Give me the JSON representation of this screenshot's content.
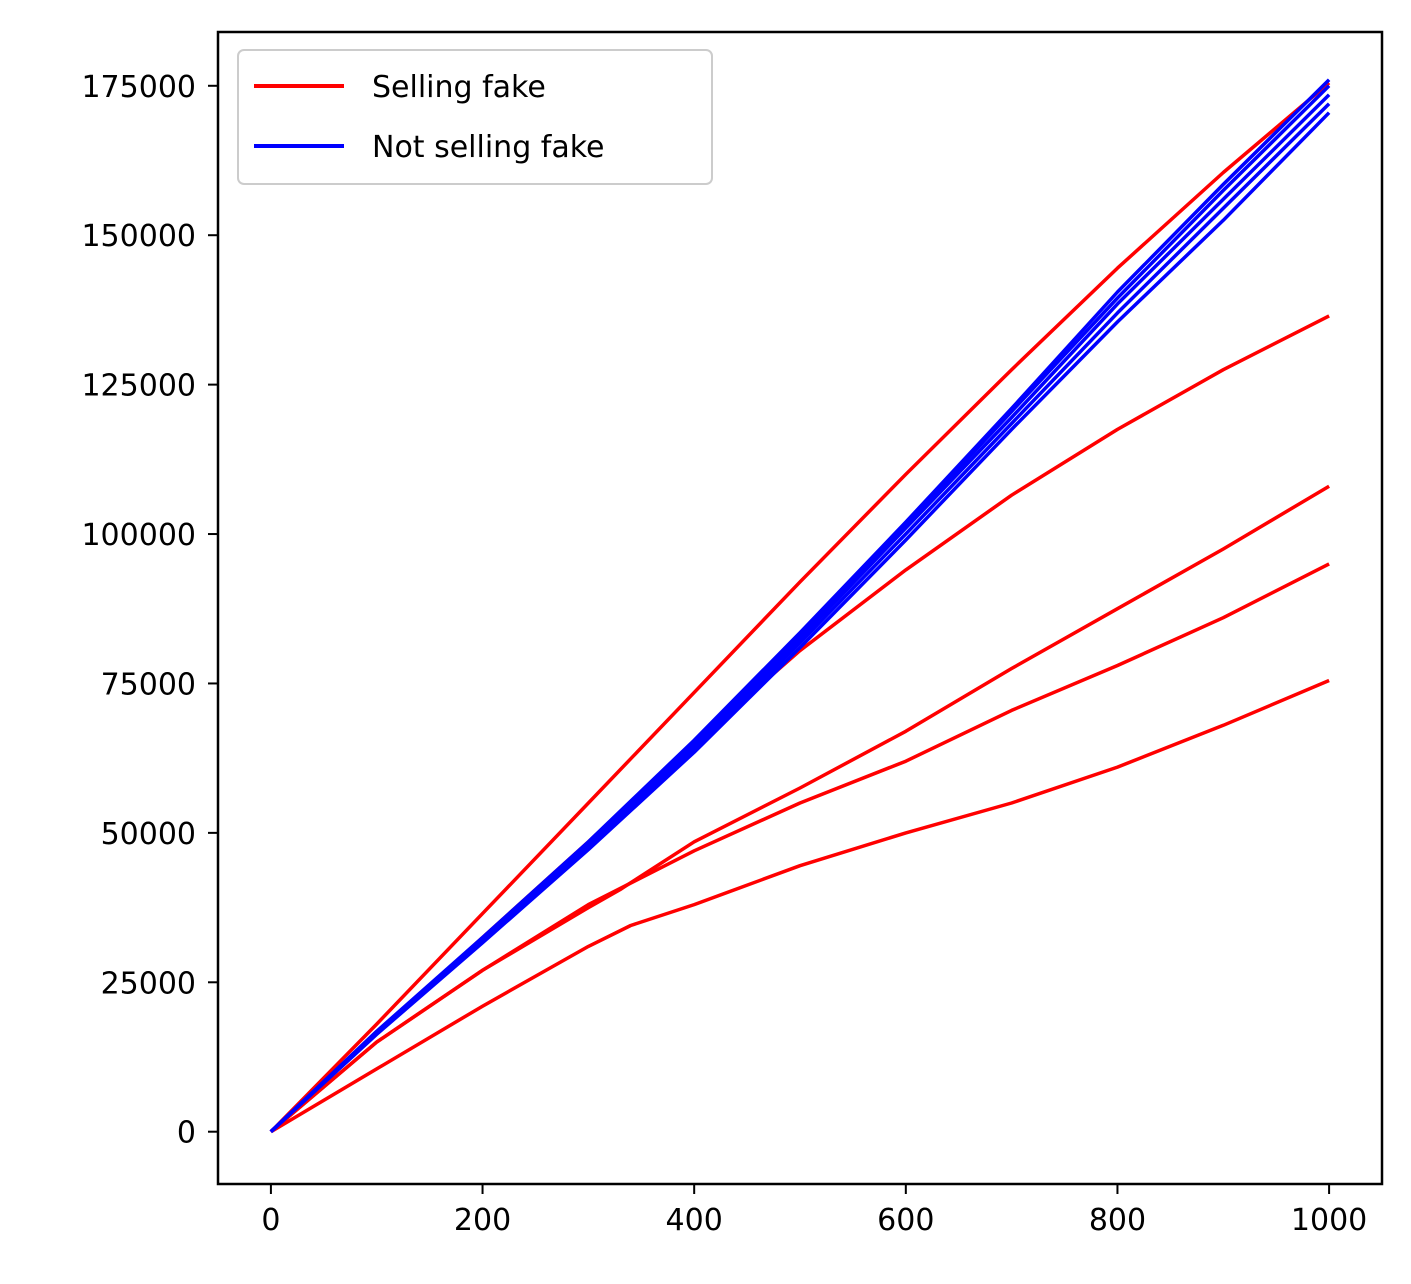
{
  "chart_data": {
    "type": "line",
    "title": "",
    "xlabel": "",
    "ylabel": "",
    "xlim": [
      -50,
      1050
    ],
    "ylim": [
      -8750,
      184000
    ],
    "xticks": [
      0,
      200,
      400,
      600,
      800,
      1000
    ],
    "xtick_labels": [
      "0",
      "200",
      "400",
      "600",
      "800",
      "1000"
    ],
    "yticks": [
      0,
      25000,
      50000,
      75000,
      100000,
      125000,
      150000,
      175000
    ],
    "ytick_labels": [
      "0",
      "25000",
      "50000",
      "75000",
      "100000",
      "125000",
      "150000",
      "175000"
    ],
    "grid": false,
    "legend": {
      "placement": "upper-left",
      "entries": [
        {
          "label": "Selling fake",
          "color": "#ff0000"
        },
        {
          "label": "Not selling fake",
          "color": "#0000ff"
        }
      ]
    },
    "series": [
      {
        "group": "Selling fake",
        "color": "#ff0000",
        "x": [
          0,
          100,
          200,
          300,
          400,
          500,
          600,
          700,
          800,
          900,
          1000
        ],
        "y": [
          0,
          18000,
          36500,
          55000,
          73500,
          92000,
          110000,
          127500,
          144500,
          160500,
          175500
        ]
      },
      {
        "group": "Selling fake",
        "color": "#ff0000",
        "x": [
          0,
          100,
          200,
          300,
          400,
          500,
          600,
          700,
          800,
          900,
          1000
        ],
        "y": [
          0,
          16500,
          32500,
          48500,
          65000,
          80500,
          94000,
          106500,
          117500,
          127500,
          136500
        ]
      },
      {
        "group": "Selling fake",
        "color": "#ff0000",
        "x": [
          0,
          100,
          200,
          300,
          330,
          400,
          500,
          600,
          700,
          800,
          900,
          1000
        ],
        "y": [
          0,
          15000,
          27000,
          37500,
          40500,
          48500,
          57500,
          67000,
          77500,
          87500,
          97500,
          108000
        ]
      },
      {
        "group": "Selling fake",
        "color": "#ff0000",
        "x": [
          0,
          100,
          200,
          300,
          400,
          500,
          600,
          700,
          800,
          900,
          1000
        ],
        "y": [
          0,
          15000,
          27000,
          38000,
          47000,
          55000,
          62000,
          70500,
          78000,
          86000,
          95000
        ]
      },
      {
        "group": "Selling fake",
        "color": "#ff0000",
        "x": [
          0,
          100,
          200,
          300,
          340,
          400,
          500,
          600,
          700,
          800,
          900,
          1000
        ],
        "y": [
          0,
          10500,
          21000,
          31000,
          34500,
          38000,
          44500,
          50000,
          55000,
          61000,
          68000,
          75500
        ]
      },
      {
        "group": "Not selling fake",
        "color": "#0000ff",
        "x": [
          0,
          100,
          200,
          300,
          400,
          500,
          600,
          700,
          800,
          900,
          1000
        ],
        "y": [
          0,
          16800,
          32500,
          48500,
          65500,
          83500,
          102000,
          121000,
          140500,
          158500,
          176000
        ]
      },
      {
        "group": "Not selling fake",
        "color": "#0000ff",
        "x": [
          0,
          100,
          200,
          300,
          400,
          500,
          600,
          700,
          800,
          900,
          1000
        ],
        "y": [
          0,
          16600,
          32200,
          48000,
          65000,
          83000,
          101500,
          120500,
          139500,
          157500,
          175000
        ]
      },
      {
        "group": "Not selling fake",
        "color": "#0000ff",
        "x": [
          0,
          100,
          200,
          300,
          400,
          500,
          600,
          700,
          800,
          900,
          1000
        ],
        "y": [
          0,
          16500,
          32000,
          47800,
          64500,
          82500,
          101000,
          119500,
          138500,
          156000,
          173500
        ]
      },
      {
        "group": "Not selling fake",
        "color": "#0000ff",
        "x": [
          0,
          100,
          200,
          300,
          400,
          500,
          600,
          700,
          800,
          900,
          1000
        ],
        "y": [
          0,
          16400,
          31800,
          47500,
          64000,
          81800,
          100000,
          118500,
          137000,
          154500,
          172000
        ]
      },
      {
        "group": "Not selling fake",
        "color": "#0000ff",
        "x": [
          0,
          100,
          200,
          300,
          400,
          500,
          600,
          700,
          800,
          900,
          1000
        ],
        "y": [
          0,
          16300,
          31600,
          47200,
          63500,
          81000,
          99000,
          117500,
          135500,
          152500,
          170500
        ]
      }
    ]
  }
}
